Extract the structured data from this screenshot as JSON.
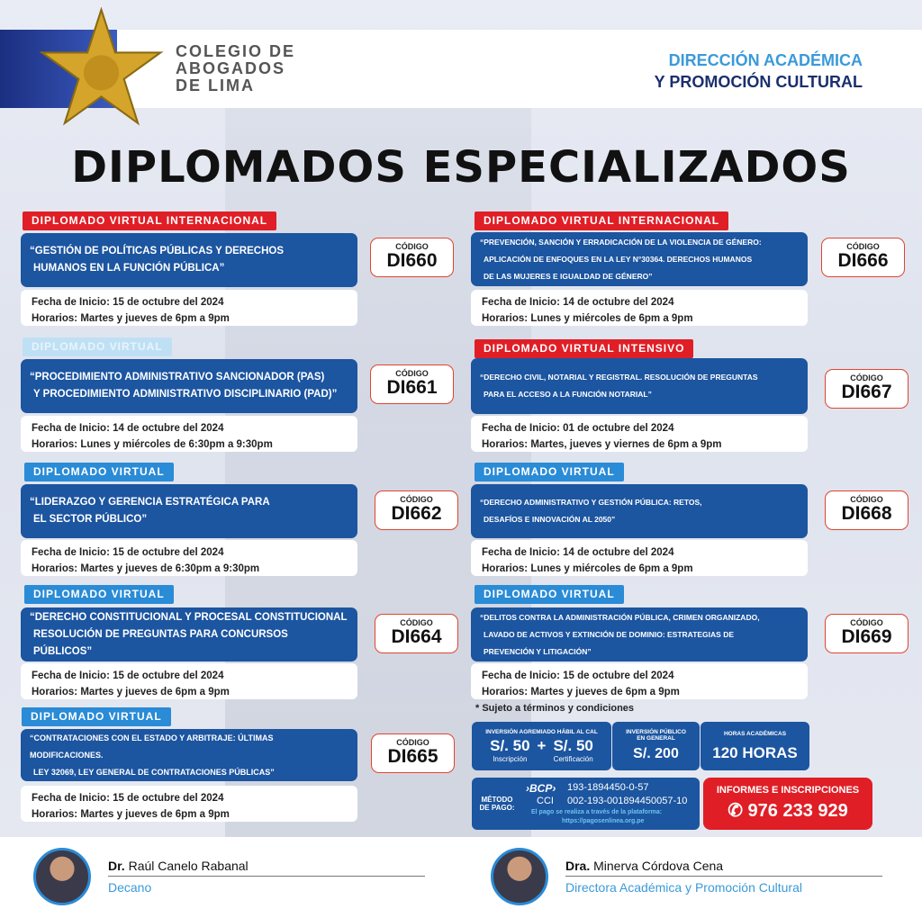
{
  "header": {
    "logo_lines": [
      "COLEGIO  DE",
      "ABOGADOS",
      "DE  LIMA"
    ],
    "seal_text": "GRABUNT CAUSAS MELIUS",
    "direction_line1": "DIRECCIÓN ACADÉMICA",
    "direction_line2": "Y PROMOCIÓN CULTURAL"
  },
  "title": "DIPLOMADOS ESPECIALIZADOS",
  "code_label": "CÓDIGO",
  "courses": [
    {
      "tag": "DIPLOMADO VIRTUAL INTERNACIONAL",
      "tag_color": "red",
      "lines": [
        "“GESTIÓN DE POLÍTICAS PÚBLICAS Y DERECHOS",
        "HUMANOS EN LA FUNCIÓN PÚBLICA”"
      ],
      "code": "DI660",
      "start": "Fecha de Inicio: 15 de octubre del 2024",
      "schedule": "Horarios: Martes y jueves de 6pm a 9pm"
    },
    {
      "tag": "DIPLOMADO VIRTUAL",
      "tag_color": "faded",
      "lines": [
        "“PROCEDIMIENTO ADMINISTRATIVO SANCIONADOR (PAS)",
        "Y PROCEDIMIENTO ADMINISTRATIVO DISCIPLINARIO (PAD)”"
      ],
      "code": "DI661",
      "start": "Fecha de Inicio: 14 de octubre del 2024",
      "schedule": "Horarios: Lunes y miércoles de 6:30pm a 9:30pm"
    },
    {
      "tag": "DIPLOMADO VIRTUAL",
      "tag_color": "blue",
      "lines": [
        "“LIDERAZGO Y GERENCIA ESTRATÉGICA PARA",
        "EL SECTOR PÚBLICO”"
      ],
      "code": "DI662",
      "start": "Fecha de Inicio: 15 de octubre del 2024",
      "schedule": "Horarios: Martes y jueves de 6:30pm a 9:30pm"
    },
    {
      "tag": "DIPLOMADO VIRTUAL",
      "tag_color": "blue",
      "lines": [
        "“DERECHO CONSTITUCIONAL Y PROCESAL CONSTITUCIONAL",
        "RESOLUCIÓN DE PREGUNTAS PARA CONCURSOS PÚBLICOS”"
      ],
      "code": "DI664",
      "start": "Fecha de Inicio: 15 de octubre del 2024",
      "schedule": "Horarios: Martes y jueves de 6pm a 9pm"
    },
    {
      "tag": "DIPLOMADO VIRTUAL",
      "tag_color": "blue",
      "lines": [
        "“CONTRATACIONES CON EL ESTADO Y ARBITRAJE: ÚLTIMAS MODIFICACIONES.",
        "LEY 32069, LEY GENERAL DE CONTRATACIONES PÚBLICAS”"
      ],
      "code": "DI665",
      "start": "Fecha de Inicio: 15 de octubre del 2024",
      "schedule": "Horarios: Martes y jueves de 6pm a 9pm"
    },
    {
      "tag": "DIPLOMADO VIRTUAL INTERNACIONAL",
      "tag_color": "red",
      "lines": [
        "“PREVENCIÓN, SANCIÓN Y ERRADICACIÓN DE LA VIOLENCIA DE GÉNERO:",
        "APLICACIÓN DE ENFOQUES EN LA LEY N°30364. DERECHOS HUMANOS",
        "DE LAS MUJERES E IGUALDAD DE GÉNERO”"
      ],
      "code": "DI666",
      "start": "Fecha de Inicio: 14 de octubre del 2024",
      "schedule": "Horarios: Lunes y miércoles de 6pm a 9pm"
    },
    {
      "tag": "DIPLOMADO VIRTUAL INTENSIVO",
      "tag_color": "red",
      "lines": [
        "“DERECHO CIVIL, NOTARIAL Y REGISTRAL. RESOLUCIÓN DE PREGUNTAS",
        "PARA EL ACCESO A LA FUNCIÓN NOTARIAL”"
      ],
      "code": "DI667",
      "start": "Fecha de Inicio: 01 de octubre del 2024",
      "schedule": "Horarios: Martes, jueves y viernes de 6pm a 9pm"
    },
    {
      "tag": "DIPLOMADO VIRTUAL",
      "tag_color": "blue",
      "lines": [
        "“DERECHO ADMINISTRATIVO Y GESTIÓN PÚBLICA: RETOS,",
        "DESAFÍOS E INNOVACIÓN AL 2050”"
      ],
      "code": "DI668",
      "start": "Fecha de Inicio: 14 de octubre del 2024",
      "schedule": "Horarios: Lunes y miércoles de 6pm a 9pm"
    },
    {
      "tag": "DIPLOMADO VIRTUAL",
      "tag_color": "blue",
      "lines": [
        "“DELITOS CONTRA LA ADMINISTRACIÓN PÚBLICA, CRIMEN ORGANIZADO,",
        "LAVADO DE ACTIVOS Y EXTINCIÓN DE DOMINIO: ESTRATEGIAS DE",
        "PREVENCIÓN Y LITIGACIÓN”"
      ],
      "code": "DI669",
      "start": "Fecha de Inicio: 15 de octubre del 2024",
      "schedule": "Horarios: Martes y jueves de 6pm a 9pm"
    }
  ],
  "note": "*   Sujeto a términos y condiciones",
  "pricing": {
    "member_label": "INVERSIÓN AGREMIADO HÁBIL AL CAL",
    "registration_price": "S/. 50",
    "registration_label": "Inscripción",
    "plus": "+",
    "certification_price": "S/. 50",
    "certification_label": "Certificación",
    "public_label": "INVERSIÓN PÚBLICO EN GENERAL",
    "public_price": "S/. 200",
    "hours_label": "HORAS ACADÉMICAS",
    "hours": "120 HORAS"
  },
  "payment": {
    "label": "MÉTODO DE PAGO:",
    "bank": "›BCP›",
    "account": "193-1894450-0-57",
    "cci_label": "CCI",
    "cci": "002-193-001894450057-10",
    "note": "El pago se realiza a través de la plataforma:",
    "url": "https://pagosenlinea.org.pe"
  },
  "contact": {
    "label": "INFORMES E INSCRIPCIONES",
    "phone": "976 233 929"
  },
  "people": [
    {
      "title": "Dr.",
      "name": "Raúl Canelo Rabanal",
      "role": "Decano"
    },
    {
      "title": "Dra.",
      "name": "Minerva Córdova Cena",
      "role": "Directora Académica y Promoción Cultural"
    }
  ],
  "colors": {
    "blue": "#1c55a0",
    "red": "#e01e26",
    "light_blue": "#2a8bd6",
    "gold": "#d4a52a"
  }
}
